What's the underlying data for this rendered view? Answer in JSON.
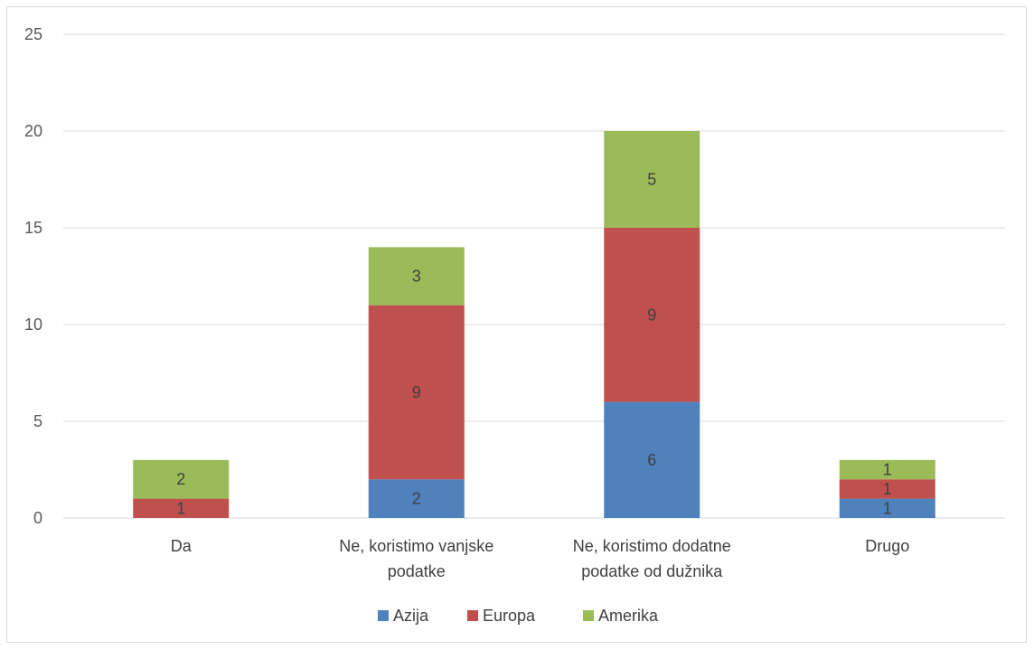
{
  "chart_data": {
    "type": "bar",
    "stacked": true,
    "title": "",
    "xlabel": "",
    "ylabel": "",
    "ylim": [
      0,
      25
    ],
    "yticks": [
      0,
      5,
      10,
      15,
      20,
      25
    ],
    "grid": true,
    "legend_position": "bottom",
    "categories": [
      [
        "Da"
      ],
      [
        "Ne, koristimo vanjske",
        "podatke"
      ],
      [
        "Ne, koristimo dodatne",
        "podatke od dužnika"
      ],
      [
        "Drugo"
      ]
    ],
    "series": [
      {
        "name": "Azija",
        "color": "#4f81bd",
        "values": [
          0,
          2,
          6,
          1
        ]
      },
      {
        "name": "Europa",
        "color": "#c0504d",
        "values": [
          1,
          9,
          9,
          1
        ]
      },
      {
        "name": "Amerika",
        "color": "#9bbb59",
        "values": [
          2,
          3,
          5,
          1
        ]
      }
    ]
  }
}
